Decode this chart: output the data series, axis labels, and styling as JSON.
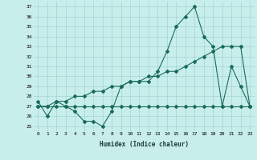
{
  "xlabel": "Humidex (Indice chaleur)",
  "background_color": "#c8eeec",
  "grid_color": "#a0d4d0",
  "line_color": "#1a6b5a",
  "x_ticks": [
    0,
    1,
    2,
    3,
    4,
    5,
    6,
    7,
    8,
    9,
    10,
    11,
    12,
    13,
    14,
    15,
    16,
    17,
    18,
    19,
    20,
    21,
    22,
    23
  ],
  "y_ticks": [
    25,
    26,
    27,
    28,
    29,
    30,
    31,
    32,
    33,
    34,
    35,
    36,
    37
  ],
  "ylim": [
    24.5,
    37.5
  ],
  "xlim": [
    -0.5,
    23.5
  ],
  "series1": [
    27.5,
    26.0,
    27.5,
    27.0,
    26.5,
    25.5,
    25.5,
    25.0,
    26.5,
    29.0,
    29.5,
    29.5,
    29.5,
    30.5,
    32.5,
    35.0,
    36.0,
    37.0,
    34.0,
    33.0,
    27.0,
    31.0,
    29.0,
    27.0
  ],
  "series2": [
    27.0,
    27.0,
    27.5,
    27.5,
    28.0,
    28.0,
    28.5,
    28.5,
    29.0,
    29.0,
    29.5,
    29.5,
    30.0,
    30.0,
    30.5,
    30.5,
    31.0,
    31.5,
    32.0,
    32.5,
    33.0,
    33.0,
    33.0,
    27.0
  ],
  "series3": [
    27.0,
    27.0,
    27.0,
    27.0,
    27.0,
    27.0,
    27.0,
    27.0,
    27.0,
    27.0,
    27.0,
    27.0,
    27.0,
    27.0,
    27.0,
    27.0,
    27.0,
    27.0,
    27.0,
    27.0,
    27.0,
    27.0,
    27.0,
    27.0
  ]
}
